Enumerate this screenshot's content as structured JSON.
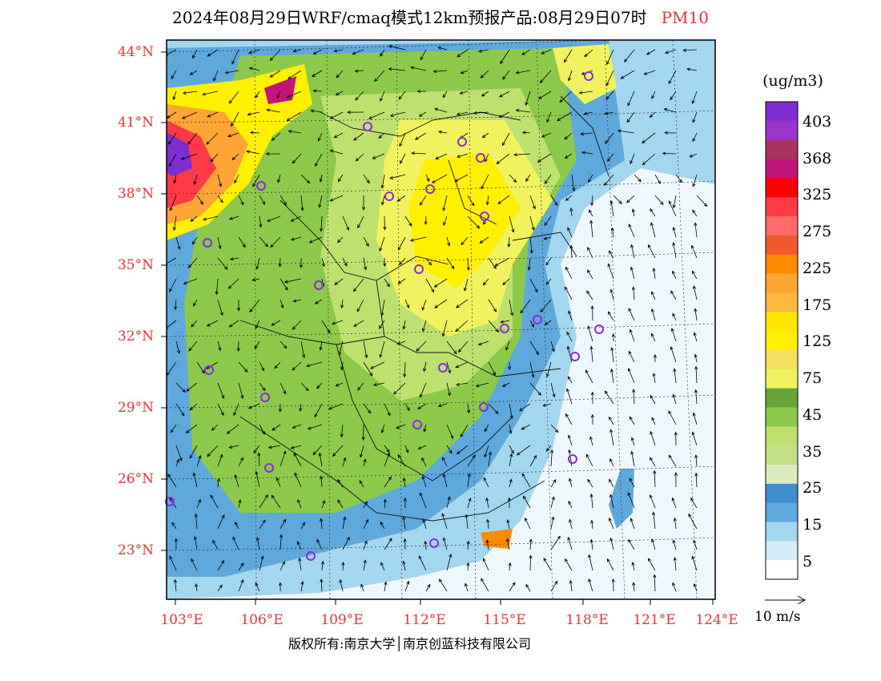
{
  "title": {
    "main": "2024年08月29日WRF/cmaq模式12km预报产品:08月29日07时",
    "pollutant": "PM10"
  },
  "axes": {
    "lat_labels": [
      "44°N",
      "41°N",
      "38°N",
      "35°N",
      "32°N",
      "29°N",
      "26°N",
      "23°N"
    ],
    "lon_labels": [
      "103°E",
      "106°E",
      "109°E",
      "112°E",
      "115°E",
      "118°E",
      "121°E",
      "124°E"
    ]
  },
  "colorbar": {
    "unit": "(ug/m3)",
    "labels": [
      "403",
      "368",
      "325",
      "275",
      "225",
      "175",
      "125",
      "75",
      "45",
      "35",
      "25",
      "15",
      "5"
    ],
    "colors": [
      "#7f2fd0",
      "#9b35c8",
      "#a8345e",
      "#c4147c",
      "#ff0000",
      "#ff3a46",
      "#ff6a6a",
      "#ee5a2c",
      "#ff8a00",
      "#ffa533",
      "#ffb740",
      "#ffe600",
      "#fff000",
      "#f4e060",
      "#f0f25e",
      "#69a43a",
      "#8cc84a",
      "#bde06e",
      "#c3e086",
      "#dcecc0",
      "#3f8dcb",
      "#5ea8db",
      "#a3d7f0",
      "#d4ecf8",
      "#ffffff"
    ]
  },
  "legend": {
    "vector_label": "10 m/s"
  },
  "footer": {
    "copyright": "版权所有:南京大学│南京创蓝科技有限公司"
  }
}
